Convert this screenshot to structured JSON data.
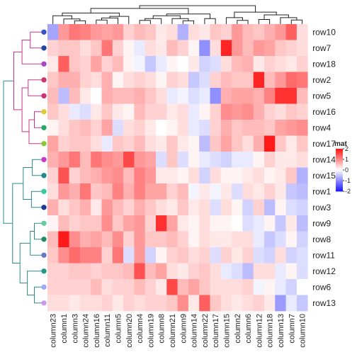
{
  "chart_data": {
    "type": "heatmap",
    "title": "",
    "rows": [
      "row10",
      "row7",
      "row18",
      "row2",
      "row5",
      "row16",
      "row4",
      "row17",
      "row14",
      "row15",
      "row1",
      "row3",
      "row9",
      "row8",
      "row11",
      "row12",
      "row6",
      "row13"
    ],
    "columns": [
      "column23",
      "column1",
      "column3",
      "column24",
      "column16",
      "column11",
      "column5",
      "column20",
      "column4",
      "column19",
      "column8",
      "column21",
      "column9",
      "column14",
      "column22",
      "column17",
      "column15",
      "column2",
      "column6",
      "column12",
      "column18",
      "column13",
      "column7",
      "column10"
    ],
    "values": [
      [
        -0.8,
        0.9,
        1.2,
        1.1,
        0.9,
        0.8,
        0.9,
        0.4,
        0.6,
        0.5,
        0.2,
        0.3,
        -0.7,
        0.3,
        0.2,
        0.5,
        0.4,
        0.9,
        0.6,
        0.5,
        0.7,
        0.9,
        1.4,
        0.3
      ],
      [
        0.4,
        0.5,
        0.5,
        0.3,
        0.5,
        1.2,
        0.4,
        0.1,
        -0.2,
        0.3,
        0.2,
        0.6,
        0.4,
        0.1,
        -1.0,
        0.3,
        1.9,
        0.9,
        0.6,
        0.9,
        0.8,
        0.5,
        0.4,
        0.3
      ],
      [
        0.2,
        1.4,
        0.5,
        0.4,
        0.8,
        0.4,
        0.6,
        0.1,
        -0.1,
        -0.5,
        -0.2,
        0.1,
        0.0,
        0.2,
        -0.4,
        -0.3,
        0.3,
        0.6,
        0.7,
        0.2,
        0.4,
        0.3,
        0.2,
        0.4
      ],
      [
        0.5,
        0.7,
        0.7,
        0.4,
        0.3,
        0.7,
        0.1,
        0.3,
        0.4,
        0.3,
        0.1,
        0.4,
        0.3,
        -0.5,
        -0.3,
        0.4,
        0.6,
        0.5,
        0.5,
        1.9,
        0.6,
        0.9,
        1.3,
        1.2
      ],
      [
        0.6,
        -0.6,
        0.6,
        0.2,
        0.0,
        0.7,
        0.6,
        0.6,
        0.7,
        0.5,
        0.3,
        -0.2,
        -0.1,
        -0.3,
        -0.2,
        -1.0,
        0.7,
        0.8,
        0.8,
        0.7,
        1.1,
        1.8,
        1.8,
        0.6
      ],
      [
        0.5,
        0.3,
        -0.2,
        -0.3,
        0.2,
        0.5,
        0.2,
        0.1,
        0.6,
        0.4,
        0.4,
        0.2,
        0.3,
        -0.2,
        0.1,
        0.4,
        1.0,
        0.9,
        1.0,
        0.7,
        0.4,
        0.3,
        0.5,
        0.4
      ],
      [
        0.1,
        0.3,
        0.5,
        0.6,
        0.4,
        0.8,
        -0.3,
        0.3,
        0.4,
        0.2,
        0.0,
        0.1,
        0.3,
        -0.2,
        -0.3,
        0.4,
        0.7,
        0.5,
        0.6,
        0.6,
        0.5,
        0.8,
        0.9,
        1.0
      ],
      [
        0.8,
        0.4,
        0.5,
        0.5,
        0.3,
        -0.2,
        0.5,
        0.4,
        0.6,
        0.3,
        0.2,
        0.5,
        0.2,
        0.1,
        -0.6,
        0.5,
        0.8,
        0.5,
        0.3,
        0.7,
        2.0,
        0.5,
        0.2,
        0.5
      ],
      [
        0.7,
        0.9,
        1.2,
        0.6,
        1.2,
        1.0,
        0.9,
        1.6,
        0.9,
        0.8,
        -0.3,
        0.5,
        -0.3,
        0.1,
        -0.2,
        -0.3,
        -0.4,
        -0.2,
        -0.2,
        0.1,
        0.4,
        0.2,
        0.2,
        0.3
      ],
      [
        0.4,
        1.5,
        0.4,
        0.6,
        0.7,
        0.9,
        1.0,
        0.6,
        1.1,
        0.9,
        0.2,
        0.2,
        0.1,
        0.3,
        -0.4,
        0.3,
        0.1,
        0.1,
        0.2,
        0.3,
        0.1,
        0.2,
        0.5,
        -0.7
      ],
      [
        0.3,
        0.9,
        0.7,
        1.2,
        0.5,
        0.6,
        1.1,
        0.7,
        1.1,
        0.8,
        0.8,
        0.4,
        0.6,
        -0.1,
        0.2,
        -0.1,
        0.2,
        -0.3,
        0.3,
        0.2,
        0.4,
        0.2,
        -0.5,
        -0.6
      ],
      [
        0.7,
        0.3,
        0.5,
        0.7,
        0.2,
        0.9,
        0.6,
        0.4,
        0.7,
        0.5,
        0.3,
        0.2,
        0.5,
        0.2,
        0.3,
        -0.3,
        0.3,
        0.1,
        -0.4,
        0.4,
        -0.6,
        0.1,
        -0.3,
        -0.4
      ],
      [
        0.1,
        0.6,
        0.4,
        0.5,
        0.5,
        1.0,
        0.5,
        0.8,
        0.9,
        0.4,
        1.8,
        0.8,
        0.2,
        0.1,
        0.3,
        0.1,
        0.1,
        0.0,
        -0.3,
        -0.2,
        0.1,
        -0.5,
        0.2,
        -0.6
      ],
      [
        0.6,
        2.0,
        1.0,
        0.7,
        0.8,
        0.6,
        1.0,
        0.4,
        0.9,
        0.5,
        0.5,
        0.6,
        0.4,
        0.1,
        0.3,
        0.2,
        0.2,
        0.3,
        0.3,
        -0.2,
        -0.5,
        -0.3,
        0.1,
        -0.4
      ],
      [
        0.5,
        1.0,
        1.3,
        1.1,
        1.1,
        0.4,
        1.2,
        -0.3,
        0.9,
        -0.4,
        0.1,
        0.4,
        0.5,
        0.3,
        0.4,
        -0.3,
        0.4,
        0.2,
        0.4,
        -0.3,
        -0.4,
        0.3,
        -0.4,
        -0.3
      ],
      [
        0.4,
        0.4,
        0.5,
        0.5,
        0.4,
        0.5,
        0.5,
        0.6,
        1.5,
        0.6,
        0.8,
        0.3,
        0.2,
        0.4,
        0.5,
        0.3,
        -0.2,
        -0.3,
        -0.6,
        0.3,
        0.3,
        -0.2,
        0.1,
        -0.3
      ],
      [
        0.4,
        0.4,
        0.4,
        0.4,
        0.6,
        0.3,
        0.4,
        0.4,
        0.6,
        0.4,
        0.2,
        1.6,
        0.6,
        0.8,
        0.5,
        0.3,
        0.3,
        0.3,
        0.4,
        -0.1,
        0.1,
        -0.2,
        -0.4,
        0.0
      ],
      [
        0.3,
        0.3,
        0.2,
        0.3,
        0.3,
        0.4,
        0.2,
        0.4,
        0.3,
        0.4,
        0.4,
        0.5,
        1.0,
        0.2,
        1.4,
        0.5,
        0.3,
        0.2,
        0.3,
        0.4,
        0.2,
        -0.9,
        -0.2,
        -0.5
      ]
    ],
    "scale": {
      "name": "mat",
      "ticks": [
        2,
        1,
        0,
        -1,
        -2
      ],
      "range": [
        -2,
        2
      ]
    },
    "colors": {
      "low": "#1f1fff",
      "mid": "#ffffff",
      "high": "#ff1a1a"
    },
    "row_dendrogram": true,
    "column_dendrogram": true,
    "row_branch_colors": [
      "#cc3388",
      "#2e8b8b"
    ]
  }
}
